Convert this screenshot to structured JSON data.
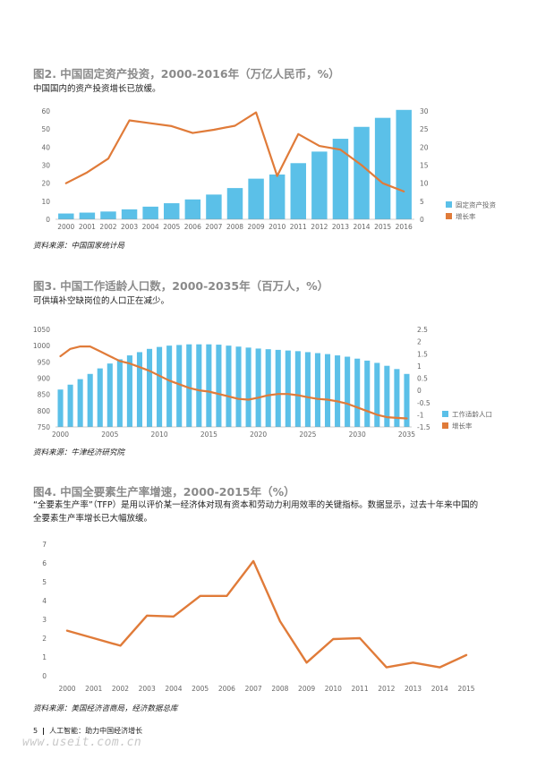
{
  "chart_data": [
    {
      "type": "bar+line",
      "title": "图2. 中国固定资产投资，2000-2016年（万亿人民币，%）",
      "subtitle": "中国国内的资产投资增长已放缓。",
      "source": "资料来源：中国国家统计局",
      "categories": [
        "2000",
        "2001",
        "2002",
        "2003",
        "2004",
        "2005",
        "2006",
        "2007",
        "2008",
        "2009",
        "2010",
        "2011",
        "2012",
        "2013",
        "2014",
        "2015",
        "2016"
      ],
      "series": [
        {
          "name": "固定资产投资",
          "kind": "bar",
          "axis": "left",
          "color": "#5bc0e8",
          "values": [
            3.2,
            3.7,
            4.3,
            5.5,
            7.0,
            8.9,
            11.0,
            13.7,
            17.3,
            22.5,
            24.8,
            31.1,
            37.5,
            44.6,
            51.2,
            56.2,
            60.6
          ]
        },
        {
          "name": "增长率",
          "kind": "line",
          "axis": "right",
          "color": "#e07b39",
          "values": [
            10.0,
            13.0,
            16.8,
            27.4,
            26.6,
            25.8,
            23.9,
            24.8,
            25.9,
            29.6,
            12.0,
            23.6,
            20.3,
            19.3,
            15.0,
            10.0,
            7.7
          ]
        }
      ],
      "y_left": {
        "min": 0,
        "max": 60,
        "ticks": [
          0,
          10,
          20,
          30,
          40,
          50,
          60
        ]
      },
      "y_right": {
        "min": 0,
        "max": 30,
        "ticks": [
          0,
          5,
          10,
          15,
          20,
          25,
          30
        ]
      },
      "legend_position": "right-bottom"
    },
    {
      "type": "bar+line",
      "title": "图3. 中国工作适龄人口数，2000-2035年（百万人，%）",
      "subtitle": "可供填补空缺岗位的人口正在减少。",
      "source": "资料来源：牛津经济研究院",
      "x": [
        2000,
        2001,
        2002,
        2003,
        2004,
        2005,
        2006,
        2007,
        2008,
        2009,
        2010,
        2011,
        2012,
        2013,
        2014,
        2015,
        2016,
        2017,
        2018,
        2019,
        2020,
        2021,
        2022,
        2023,
        2024,
        2025,
        2026,
        2027,
        2028,
        2029,
        2030,
        2031,
        2032,
        2033,
        2034,
        2035
      ],
      "x_tick_labels": [
        "2000",
        "2005",
        "2010",
        "2015",
        "2020",
        "2025",
        "2030",
        "2035"
      ],
      "series": [
        {
          "name": "工作适龄人口",
          "kind": "bar",
          "axis": "left",
          "color": "#5bc0e8",
          "values": [
            865,
            880,
            897,
            913,
            930,
            945,
            958,
            970,
            980,
            990,
            996,
            1000,
            1002,
            1004,
            1004,
            1004,
            1003,
            1000,
            997,
            994,
            991,
            989,
            987,
            985,
            983,
            980,
            977,
            974,
            970,
            966,
            960,
            954,
            947,
            938,
            928,
            913
          ]
        },
        {
          "name": "增长率",
          "kind": "line",
          "axis": "right",
          "color": "#e07b39",
          "values": [
            1.4,
            1.7,
            1.8,
            1.8,
            1.6,
            1.4,
            1.2,
            1.1,
            0.95,
            0.8,
            0.6,
            0.4,
            0.25,
            0.1,
            0.0,
            -0.05,
            -0.15,
            -0.25,
            -0.35,
            -0.38,
            -0.3,
            -0.2,
            -0.15,
            -0.15,
            -0.2,
            -0.28,
            -0.35,
            -0.38,
            -0.45,
            -0.55,
            -0.7,
            -0.85,
            -1.0,
            -1.1,
            -1.13,
            -1.15
          ]
        }
      ],
      "y_left": {
        "min": 750,
        "max": 1050,
        "ticks": [
          750,
          800,
          850,
          900,
          950,
          1000,
          1050
        ]
      },
      "y_right": {
        "min": -1.5,
        "max": 2.5,
        "ticks": [
          -1.5,
          -1.0,
          -0.5,
          0.0,
          0.5,
          1.0,
          1.5,
          2.0,
          2.5
        ]
      },
      "legend_position": "right-bottom"
    },
    {
      "type": "line",
      "title": "图4. 中国全要素生产率增速，2000-2015年（%）",
      "subtitle_lines": [
        "“全要素生产率”（TFP）是用以评价某一经济体对现有资本和劳动力利用效率的关键指标。数据显示，过去十年来中国的",
        "全要素生产率增长已大幅放缓。"
      ],
      "source": "资料来源：美国经济咨商局，经济数据总库",
      "categories": [
        "2000",
        "2001",
        "2002",
        "2003",
        "2004",
        "2005",
        "2006",
        "2007",
        "2008",
        "2009",
        "2010",
        "2011",
        "2012",
        "2013",
        "2014",
        "2015"
      ],
      "series": [
        {
          "kind": "line",
          "color": "#e07b39",
          "values": [
            2.4,
            2.0,
            1.6,
            3.2,
            3.15,
            4.25,
            4.25,
            6.1,
            2.9,
            0.7,
            1.95,
            2.0,
            0.45,
            0.7,
            0.45,
            1.1
          ]
        }
      ],
      "y": {
        "min": 0,
        "max": 7,
        "ticks": [
          0,
          1,
          2,
          3,
          4,
          5,
          6,
          7
        ]
      }
    }
  ],
  "footer": {
    "page": "5",
    "text": "人工智能：助力中国经济增长"
  },
  "watermark": "www.useit.com.cn"
}
